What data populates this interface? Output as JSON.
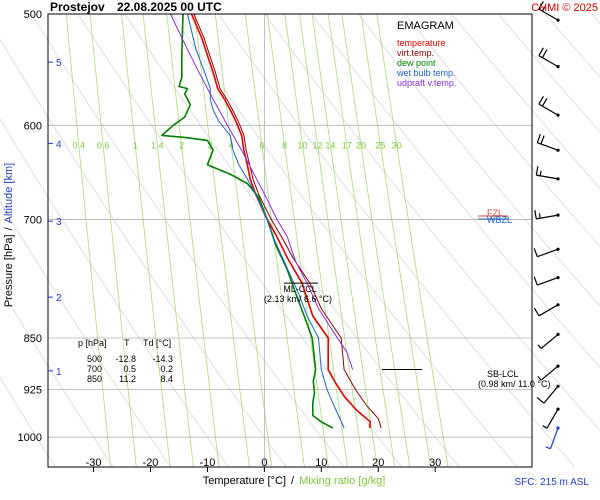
{
  "header": {
    "station": "Prostejov",
    "datetime": "22.08.2025 00 UTC",
    "credit": "CHMI © 2025"
  },
  "legend": {
    "title": "EMAGRAM",
    "items": [
      {
        "label": "temperature",
        "color": "#e00000"
      },
      {
        "label": "virt.temp.",
        "color": "#8b0000"
      },
      {
        "label": "dew point",
        "color": "#008000"
      },
      {
        "label": "wet bulb temp.",
        "color": "#1e64c8"
      },
      {
        "label": "udpraft v.temp.",
        "color": "#8a2be2"
      }
    ]
  },
  "xlabel_temperature": "Temperature [°C]",
  "xlabel_separator": "/",
  "xlabel_mixing": "Mixing ratio [g/kg]",
  "ylabel_pressure": "Pressure [hPa]",
  "ylabel_separator": "/",
  "ylabel_altitude": "Altitude [km]",
  "surface_note": "SFC: 215 m ASL",
  "annotations": {
    "ml_ccl_title": "ML-CCL",
    "ml_ccl_detail": "(2.13 km/ 6.6 °C)",
    "sb_lcl_title": "SB-LCL",
    "sb_lcl_detail": "(0.98 km/ 11.0 °C)",
    "ml_ccl_point": {
      "t": 6.6,
      "p": 777
    },
    "sb_lcl_point": {
      "t": 11.0,
      "p": 895
    },
    "wbzl": "WBZL",
    "fzl": "FZL"
  },
  "table": {
    "headers": [
      "p [hPa]",
      "T",
      "Td [°C]"
    ],
    "rows": [
      [
        "500",
        "-12.8",
        "-14.3"
      ],
      [
        "700",
        "0.5",
        "0.2"
      ],
      [
        "850",
        "11.2",
        "8.4"
      ]
    ]
  },
  "chart_data": {
    "type": "line",
    "x_range": [
      -38,
      47
    ],
    "p_range": [
      500,
      1050
    ],
    "pressure_ticks": [
      500,
      600,
      700,
      850,
      925,
      1000
    ],
    "temperature_ticks": [
      -30,
      -20,
      -10,
      0,
      10,
      20,
      30
    ],
    "altitude_ticks": [
      {
        "label": "1",
        "p": 897
      },
      {
        "label": "2",
        "p": 795
      },
      {
        "label": "3",
        "p": 702
      },
      {
        "label": "4",
        "p": 618
      },
      {
        "label": "5",
        "p": 541
      }
    ],
    "mixing_ratio_labels": [
      "0.4",
      "0.6",
      "1",
      "1.4",
      "2",
      "3",
      "4",
      "6",
      "8",
      "10",
      "12",
      "14",
      "17",
      "20",
      "25",
      "30"
    ],
    "mixing_ratio_values": [
      0.4,
      0.6,
      1,
      1.4,
      2,
      3,
      4,
      6,
      8,
      10,
      12,
      14,
      17,
      20,
      25,
      30
    ],
    "mixing_ratio_label_p": 620,
    "series": [
      {
        "name": "temperature",
        "color": "#e00000",
        "width": 1.6,
        "points": [
          [
            18.5,
            985
          ],
          [
            18.6,
            975
          ],
          [
            16,
            955
          ],
          [
            14,
            935
          ],
          [
            12.5,
            915
          ],
          [
            11.2,
            895
          ],
          [
            11.2,
            850
          ],
          [
            8.5,
            820
          ],
          [
            6.6,
            777
          ],
          [
            4,
            745
          ],
          [
            2.2,
            720
          ],
          [
            0.5,
            700
          ],
          [
            -1.5,
            672
          ],
          [
            -2.5,
            655
          ],
          [
            -3,
            640
          ],
          [
            -3.6,
            625
          ],
          [
            -4,
            610
          ],
          [
            -5,
            596
          ],
          [
            -6,
            585
          ],
          [
            -7,
            575
          ],
          [
            -8.2,
            565
          ],
          [
            -9,
            550
          ],
          [
            -10,
            535
          ],
          [
            -11,
            520
          ],
          [
            -12.8,
            500
          ]
        ]
      },
      {
        "name": "virt.temp.",
        "color": "#8b0000",
        "width": 1.0,
        "points": [
          [
            20.5,
            985
          ],
          [
            20,
            970
          ],
          [
            18,
            950
          ],
          [
            16,
            925
          ],
          [
            14,
            895
          ],
          [
            13.5,
            850
          ],
          [
            10,
            810
          ],
          [
            8,
            777
          ],
          [
            5,
            745
          ],
          [
            3,
            720
          ],
          [
            1.2,
            700
          ],
          [
            -1,
            672
          ],
          [
            -2,
            655
          ],
          [
            -2.6,
            640
          ],
          [
            -3.2,
            625
          ],
          [
            -3.6,
            610
          ],
          [
            -4.6,
            596
          ],
          [
            -5.6,
            585
          ],
          [
            -6.6,
            575
          ],
          [
            -7.8,
            565
          ],
          [
            -8.6,
            550
          ],
          [
            -9.6,
            535
          ],
          [
            -10.6,
            520
          ],
          [
            -12.4,
            500
          ]
        ]
      },
      {
        "name": "dew point",
        "color": "#008000",
        "width": 1.6,
        "points": [
          [
            12,
            985
          ],
          [
            10,
            975
          ],
          [
            8.5,
            965
          ],
          [
            8.5,
            945
          ],
          [
            8.8,
            930
          ],
          [
            8.6,
            912
          ],
          [
            9,
            895
          ],
          [
            8.4,
            850
          ],
          [
            7,
            820
          ],
          [
            5.5,
            790
          ],
          [
            4,
            760
          ],
          [
            2,
            730
          ],
          [
            0.5,
            700
          ],
          [
            -1,
            675
          ],
          [
            -3,
            660
          ],
          [
            -6,
            650
          ],
          [
            -10,
            640
          ],
          [
            -9,
            625
          ],
          [
            -10,
            615
          ],
          [
            -14,
            612
          ],
          [
            -18,
            610
          ],
          [
            -16,
            600
          ],
          [
            -14,
            592
          ],
          [
            -13,
            580
          ],
          [
            -14,
            570
          ],
          [
            -13.5,
            565
          ],
          [
            -15,
            563
          ],
          [
            -14.5,
            555
          ],
          [
            -14.5,
            535
          ],
          [
            -14.3,
            500
          ]
        ]
      },
      {
        "name": "wet bulb temp.",
        "color": "#1e64c8",
        "width": 1.0,
        "points": [
          [
            14,
            985
          ],
          [
            13,
            965
          ],
          [
            12,
            945
          ],
          [
            11,
            925
          ],
          [
            10,
            895
          ],
          [
            9.5,
            850
          ],
          [
            7.5,
            820
          ],
          [
            6,
            790
          ],
          [
            3.5,
            750
          ],
          [
            1.5,
            720
          ],
          [
            0.5,
            700
          ],
          [
            -1.5,
            672
          ],
          [
            -3,
            655
          ],
          [
            -4.5,
            640
          ],
          [
            -5.5,
            625
          ],
          [
            -6,
            610
          ],
          [
            -8,
            596
          ],
          [
            -9,
            585
          ],
          [
            -9.5,
            575
          ],
          [
            -9.5,
            565
          ],
          [
            -10.5,
            550
          ],
          [
            -12,
            530
          ],
          [
            -13.5,
            500
          ]
        ]
      },
      {
        "name": "udpraft v.temp.",
        "color": "#8a2be2",
        "width": 1.0,
        "points": [
          [
            15.5,
            895
          ],
          [
            14.5,
            870
          ],
          [
            12,
            840
          ],
          [
            9.5,
            810
          ],
          [
            7.5,
            777
          ],
          [
            5.5,
            750
          ],
          [
            4,
            720
          ],
          [
            2.2,
            700
          ],
          [
            0.3,
            675
          ],
          [
            -1.8,
            650
          ],
          [
            -4,
            625
          ],
          [
            -6.5,
            600
          ],
          [
            -9,
            575
          ],
          [
            -11.5,
            550
          ],
          [
            -14,
            525
          ],
          [
            -16.5,
            500
          ]
        ]
      }
    ],
    "wind_barbs": [
      {
        "p": 505,
        "dir": 300,
        "spd": 15
      },
      {
        "p": 545,
        "dir": 300,
        "spd": 20
      },
      {
        "p": 590,
        "dir": 300,
        "spd": 20
      },
      {
        "p": 625,
        "dir": 290,
        "spd": 20
      },
      {
        "p": 655,
        "dir": 280,
        "spd": 15
      },
      {
        "p": 695,
        "dir": 260,
        "spd": 15
      },
      {
        "p": 735,
        "dir": 250,
        "spd": 10
      },
      {
        "p": 770,
        "dir": 250,
        "spd": 10
      },
      {
        "p": 805,
        "dir": 240,
        "spd": 10
      },
      {
        "p": 845,
        "dir": 230,
        "spd": 5
      },
      {
        "p": 890,
        "dir": 230,
        "spd": 5
      },
      {
        "p": 920,
        "dir": 220,
        "spd": 10
      },
      {
        "p": 955,
        "dir": 210,
        "spd": 5
      },
      {
        "p": 985,
        "dir": 200,
        "spd": 5
      }
    ]
  }
}
